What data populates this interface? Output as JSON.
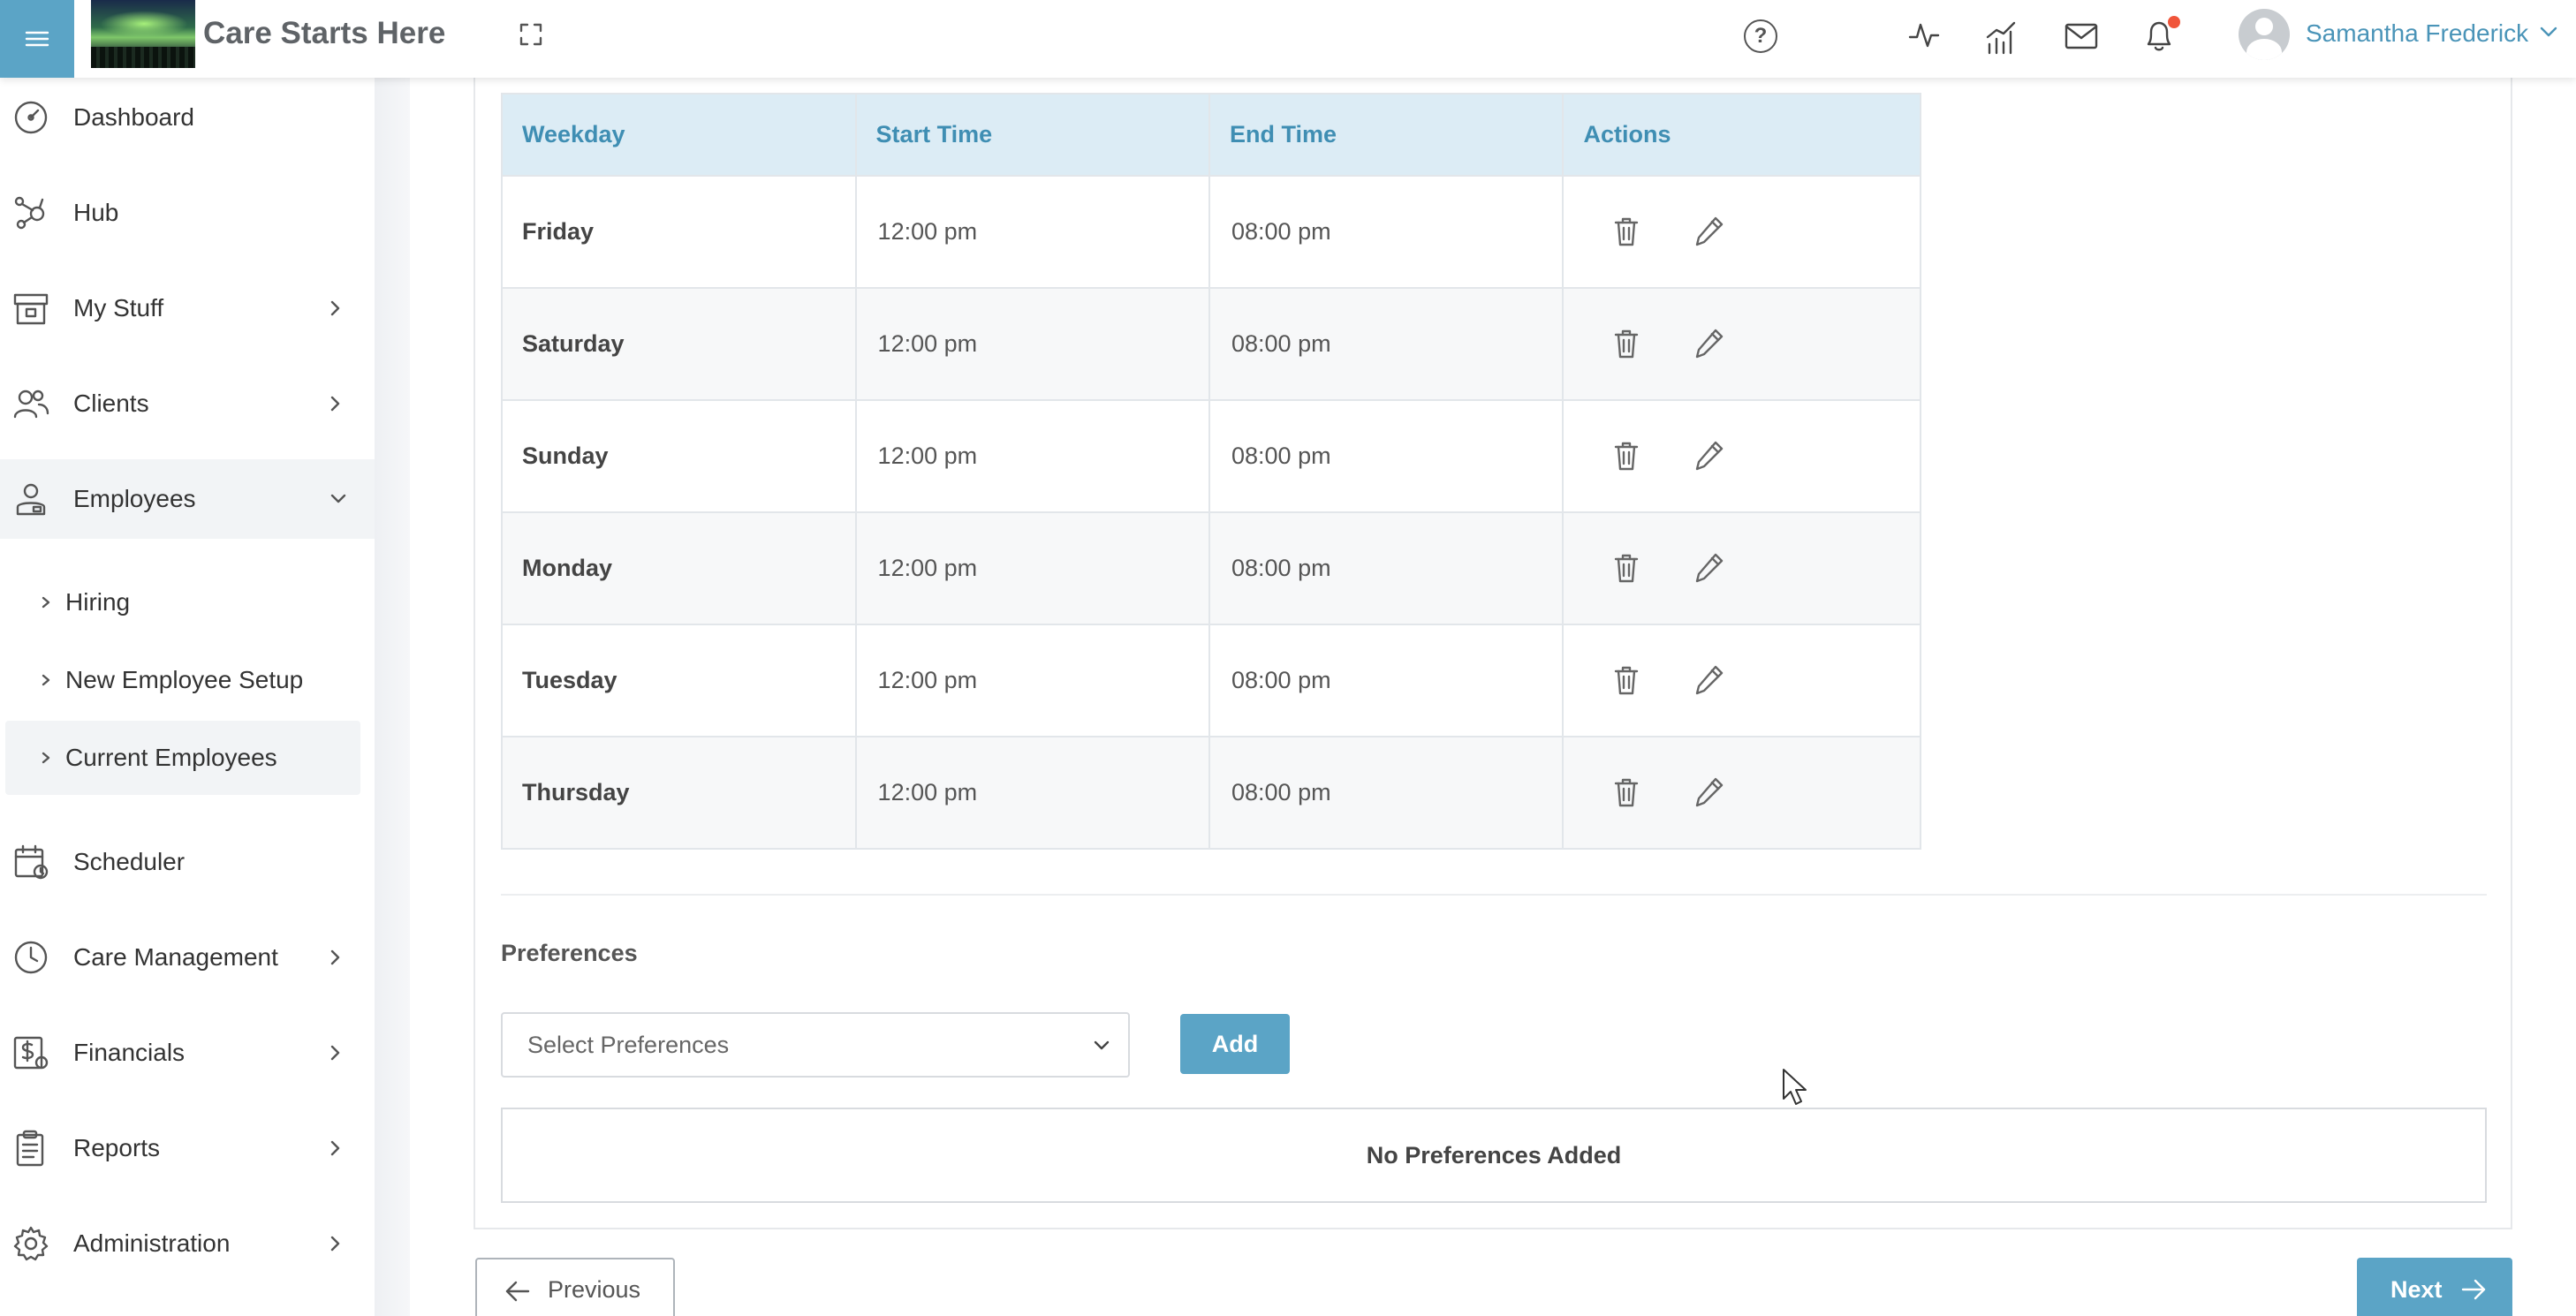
{
  "header": {
    "app_title": "Care Starts Here",
    "user_name": "Samantha Frederick",
    "notification_dot_color": "#f0553a",
    "icons": [
      "menu-icon",
      "expand-icon",
      "help-icon",
      "activity-icon",
      "analytics-icon",
      "mail-icon",
      "bell-icon",
      "user-avatar-icon",
      "chevron-down-icon"
    ]
  },
  "sidebar": {
    "items": [
      {
        "label": "Dashboard",
        "icon": "dashboard-icon"
      },
      {
        "label": "Hub",
        "icon": "hub-icon"
      },
      {
        "label": "My Stuff",
        "icon": "archive-icon"
      },
      {
        "label": "Clients",
        "icon": "clients-icon"
      },
      {
        "label": "Employees",
        "icon": "employees-icon"
      },
      {
        "label": "Scheduler",
        "icon": "calendar-icon"
      },
      {
        "label": "Care Management",
        "icon": "clock-icon"
      },
      {
        "label": "Financials",
        "icon": "financials-icon"
      },
      {
        "label": "Reports",
        "icon": "clipboard-icon"
      },
      {
        "label": "Administration",
        "icon": "gear-icon"
      }
    ],
    "employees_submenu": [
      {
        "label": "Hiring"
      },
      {
        "label": "New Employee Setup"
      },
      {
        "label": "Current Employees"
      }
    ]
  },
  "availability_table": {
    "headers": {
      "weekday": "Weekday",
      "start_time": "Start Time",
      "end_time": "End Time",
      "actions": "Actions"
    },
    "rows": [
      {
        "weekday": "Friday",
        "start": "12:00 pm",
        "end": "08:00 pm"
      },
      {
        "weekday": "Saturday",
        "start": "12:00 pm",
        "end": "08:00 pm"
      },
      {
        "weekday": "Sunday",
        "start": "12:00 pm",
        "end": "08:00 pm"
      },
      {
        "weekday": "Monday",
        "start": "12:00 pm",
        "end": "08:00 pm"
      },
      {
        "weekday": "Tuesday",
        "start": "12:00 pm",
        "end": "08:00 pm"
      },
      {
        "weekday": "Thursday",
        "start": "12:00 pm",
        "end": "08:00 pm"
      }
    ]
  },
  "preferences": {
    "label": "Preferences",
    "select_placeholder": "Select Preferences",
    "add_label": "Add",
    "empty_message": "No Preferences Added"
  },
  "footer": {
    "previous_label": "Previous",
    "next_label": "Next"
  },
  "colors": {
    "accent": "#5ba4c6",
    "table_header_bg": "#dcecf5",
    "table_header_text": "#3f8eb3"
  }
}
